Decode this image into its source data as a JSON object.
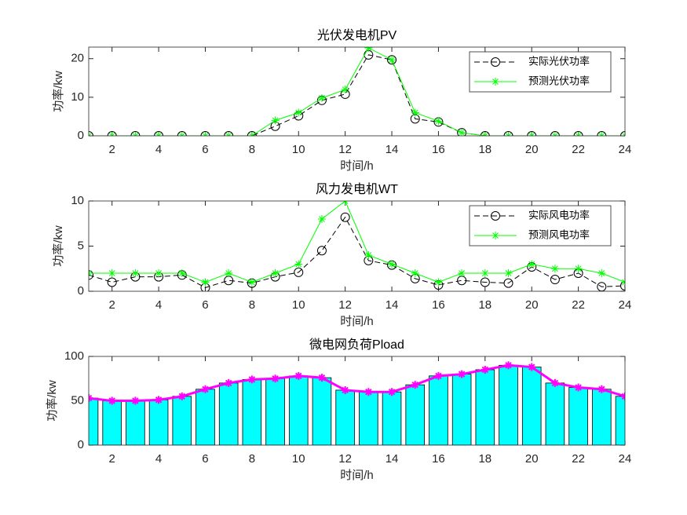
{
  "chart_data": [
    {
      "type": "line",
      "title": "光伏发电机PV",
      "xlabel": "时间/h",
      "ylabel": "功率/kw",
      "x": [
        1,
        2,
        3,
        4,
        5,
        6,
        7,
        8,
        9,
        10,
        11,
        12,
        13,
        14,
        15,
        16,
        17,
        18,
        19,
        20,
        21,
        22,
        23,
        24
      ],
      "xlim": [
        1,
        24
      ],
      "xticks": [
        2,
        4,
        6,
        8,
        10,
        12,
        14,
        16,
        18,
        20,
        22,
        24
      ],
      "ylim": [
        0,
        23
      ],
      "yticks": [
        0,
        10,
        20
      ],
      "legend": "northeast",
      "series": [
        {
          "name": "实际光伏功率",
          "color": "#000000",
          "marker": "o",
          "linestyle": "dashed",
          "values": [
            0,
            0,
            0,
            0,
            0,
            0,
            0,
            0,
            2.5,
            5.2,
            9.2,
            10.8,
            21,
            19.7,
            4.4,
            3.6,
            0.8,
            0,
            0,
            0,
            0,
            0,
            0,
            0
          ]
        },
        {
          "name": "预测光伏功率",
          "color": "#00ff00",
          "marker": "*",
          "linestyle": "solid",
          "values": [
            0,
            0,
            0,
            0,
            0,
            0,
            0,
            0,
            4,
            6,
            9.8,
            12,
            22.8,
            19.7,
            6,
            3.8,
            0.8,
            0,
            0,
            0,
            0,
            0,
            0,
            0
          ]
        }
      ]
    },
    {
      "type": "line",
      "title": "风力发电机WT",
      "xlabel": "时间/h",
      "ylabel": "功率/kw",
      "x": [
        1,
        2,
        3,
        4,
        5,
        6,
        7,
        8,
        9,
        10,
        11,
        12,
        13,
        14,
        15,
        16,
        17,
        18,
        19,
        20,
        21,
        22,
        23,
        24
      ],
      "xlim": [
        1,
        24
      ],
      "xticks": [
        2,
        4,
        6,
        8,
        10,
        12,
        14,
        16,
        18,
        20,
        22,
        24
      ],
      "ylim": [
        0,
        10
      ],
      "yticks": [
        0,
        5,
        10
      ],
      "legend": "northeast",
      "series": [
        {
          "name": "实际风电功率",
          "color": "#000000",
          "marker": "o",
          "linestyle": "dashed",
          "values": [
            1.8,
            1.0,
            1.6,
            1.6,
            1.8,
            0.4,
            1.2,
            0.9,
            1.6,
            2.1,
            4.5,
            8.2,
            3.4,
            2.9,
            1.4,
            0.7,
            1.2,
            1.0,
            0.9,
            2.7,
            1.3,
            2.0,
            0.5,
            0.6
          ]
        },
        {
          "name": "预测风电功率",
          "color": "#00ff00",
          "marker": "*",
          "linestyle": "solid",
          "values": [
            2,
            2,
            2,
            2,
            2,
            1,
            2,
            1,
            2,
            3,
            8,
            10,
            4,
            3,
            2,
            1,
            2,
            2,
            2,
            3,
            2.5,
            2.5,
            2,
            1
          ]
        }
      ]
    },
    {
      "type": "bar",
      "title": "微电网负荷Pload",
      "xlabel": "时间/h",
      "ylabel": "功率/kw",
      "x": [
        1,
        2,
        3,
        4,
        5,
        6,
        7,
        8,
        9,
        10,
        11,
        12,
        13,
        14,
        15,
        16,
        17,
        18,
        19,
        20,
        21,
        22,
        23,
        24
      ],
      "xlim": [
        1,
        24
      ],
      "xticks": [
        2,
        4,
        6,
        8,
        10,
        12,
        14,
        16,
        18,
        20,
        22,
        24
      ],
      "ylim": [
        0,
        100
      ],
      "yticks": [
        0,
        50,
        100
      ],
      "color": "#00ffff",
      "line_color": "#ff00ff",
      "marker": "*",
      "values": [
        53,
        50,
        50,
        51,
        55,
        63,
        70,
        74,
        75,
        78,
        76,
        62,
        60,
        60,
        68,
        78,
        80,
        85,
        90,
        88,
        70,
        65,
        63,
        55
      ]
    }
  ]
}
